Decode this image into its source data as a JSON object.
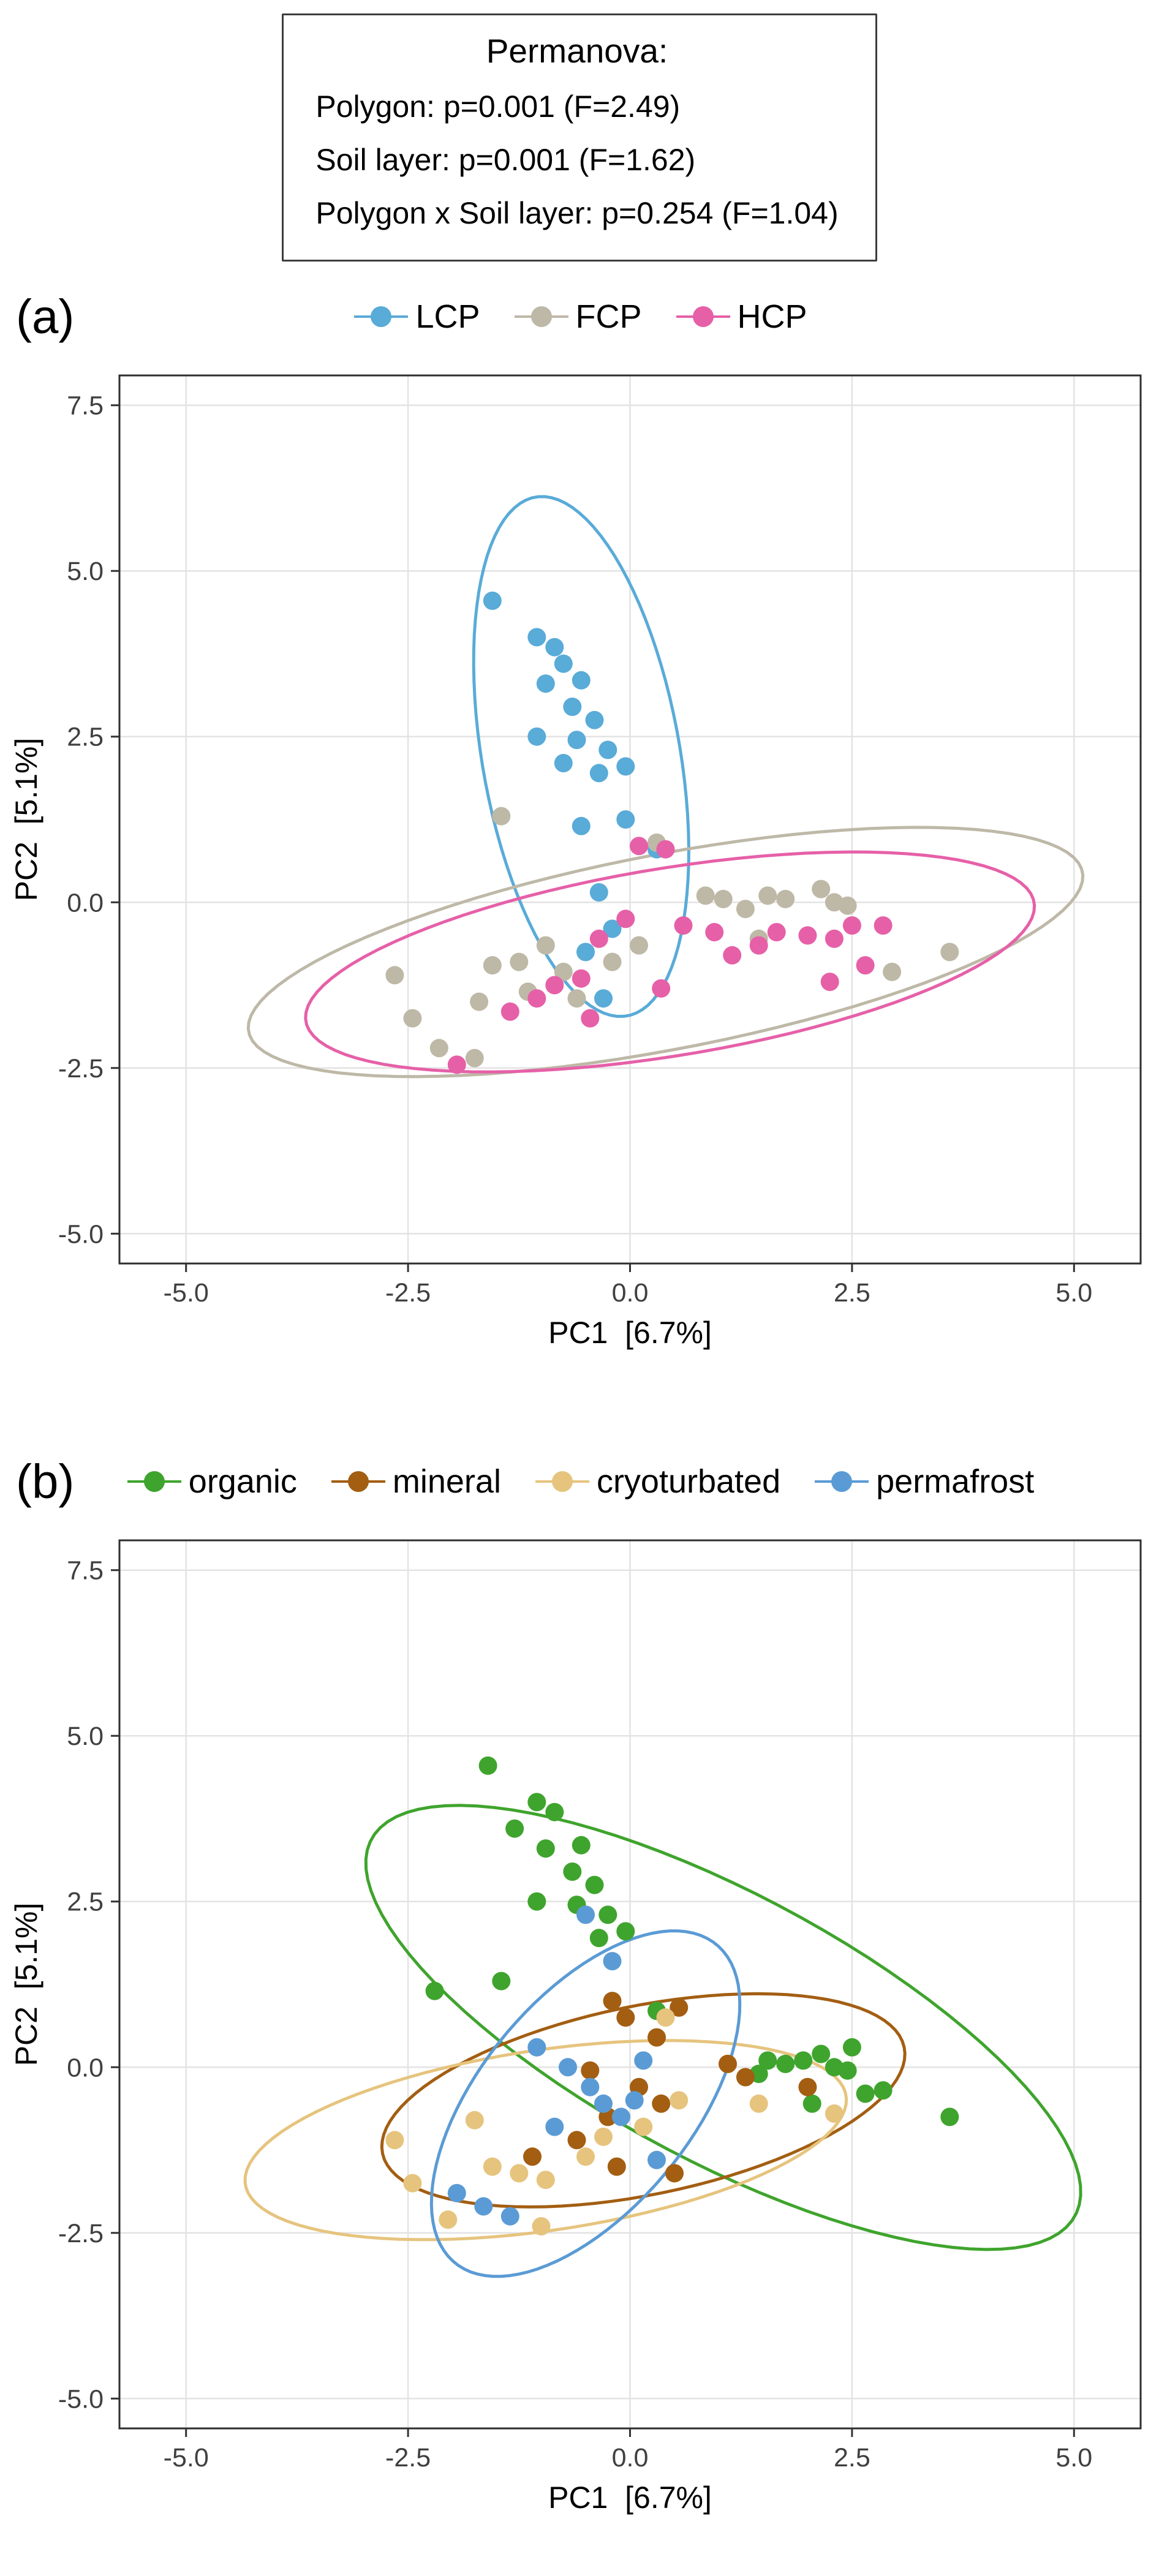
{
  "permanova_box": {
    "title": "Permanova:",
    "lines": [
      "Polygon: p=0.001 (F=2.49)",
      "Soil layer: p=0.001 (F=1.62)",
      "Polygon x Soil layer: p=0.254 (F=1.04)"
    ]
  },
  "style": {
    "grid_color": "#e3e3e3",
    "border_color": "#2e2e2e",
    "tick_color": "#333333",
    "tick_label_color": "#404040",
    "axis_title_color": "#000000",
    "point_radius": 15,
    "ellipse_stroke_width": 5
  },
  "chart_data": [
    {
      "type": "scatter",
      "panel_label": "(a)",
      "xlabel": "PC1  [6.7%]",
      "ylabel": "PC2  [5.1%]",
      "xlim": [
        -5.75,
        5.75
      ],
      "ylim": [
        -5.45,
        7.95
      ],
      "xticks": [
        -5.0,
        -2.5,
        0.0,
        2.5,
        5.0
      ],
      "xtick_labels": [
        "-5.0",
        "-2.5",
        "0.0",
        "2.5",
        "5.0"
      ],
      "yticks": [
        -5.0,
        -2.5,
        0.0,
        2.5,
        5.0,
        7.5
      ],
      "ytick_labels": [
        "-5.0",
        "-2.5",
        "0.0",
        "2.5",
        "5.0",
        "7.5"
      ],
      "grid": true,
      "legend_position": "top",
      "series": [
        {
          "name": "lcp",
          "label": "LCP",
          "color": "#59abd8",
          "ellipse": {
            "cx": -0.55,
            "cy": 2.2,
            "rx": 3.95,
            "ry": 1.12,
            "angle": 97
          },
          "points": [
            [
              -1.55,
              4.55
            ],
            [
              -1.05,
              4.0
            ],
            [
              -0.85,
              3.85
            ],
            [
              -0.75,
              3.6
            ],
            [
              -0.95,
              3.3
            ],
            [
              -0.55,
              3.35
            ],
            [
              -0.65,
              2.95
            ],
            [
              -0.4,
              2.75
            ],
            [
              -1.05,
              2.5
            ],
            [
              -0.6,
              2.45
            ],
            [
              -0.25,
              2.3
            ],
            [
              -0.75,
              2.1
            ],
            [
              -0.35,
              1.95
            ],
            [
              -0.05,
              2.05
            ],
            [
              -0.55,
              1.15
            ],
            [
              -0.05,
              1.25
            ],
            [
              0.3,
              0.8
            ],
            [
              -0.35,
              0.15
            ],
            [
              -0.2,
              -0.4
            ],
            [
              -0.5,
              -0.75
            ],
            [
              -0.3,
              -1.45
            ]
          ]
        },
        {
          "name": "fcp",
          "label": "FCP",
          "color": "#beb8a7",
          "ellipse": {
            "cx": 0.4,
            "cy": -0.75,
            "rx": 4.85,
            "ry": 1.45,
            "angle": 15
          },
          "points": [
            [
              -1.45,
              1.3
            ],
            [
              0.3,
              0.9
            ],
            [
              -2.65,
              -1.1
            ],
            [
              -2.45,
              -1.75
            ],
            [
              -2.15,
              -2.2
            ],
            [
              -1.75,
              -2.35
            ],
            [
              -1.7,
              -1.5
            ],
            [
              -1.55,
              -0.95
            ],
            [
              -1.25,
              -0.9
            ],
            [
              -1.15,
              -1.35
            ],
            [
              -0.95,
              -0.65
            ],
            [
              -0.75,
              -1.05
            ],
            [
              -0.6,
              -1.45
            ],
            [
              -0.2,
              -0.9
            ],
            [
              0.1,
              -0.65
            ],
            [
              0.85,
              0.1
            ],
            [
              1.05,
              0.05
            ],
            [
              1.3,
              -0.1
            ],
            [
              1.55,
              0.1
            ],
            [
              1.75,
              0.05
            ],
            [
              2.15,
              0.2
            ],
            [
              2.3,
              0.0
            ],
            [
              2.45,
              -0.05
            ],
            [
              3.6,
              -0.75
            ],
            [
              2.95,
              -1.05
            ],
            [
              1.45,
              -0.55
            ]
          ]
        },
        {
          "name": "hcp",
          "label": "HCP",
          "color": "#e660a8",
          "ellipse": {
            "cx": 0.45,
            "cy": -0.9,
            "rx": 4.2,
            "ry": 1.4,
            "angle": 13
          },
          "points": [
            [
              0.1,
              0.85
            ],
            [
              0.4,
              0.8
            ],
            [
              -0.05,
              -0.25
            ],
            [
              -0.35,
              -0.55
            ],
            [
              -0.55,
              -1.15
            ],
            [
              -0.85,
              -1.25
            ],
            [
              -1.05,
              -1.45
            ],
            [
              -1.35,
              -1.65
            ],
            [
              -1.95,
              -2.45
            ],
            [
              -0.45,
              -1.75
            ],
            [
              0.6,
              -0.35
            ],
            [
              0.95,
              -0.45
            ],
            [
              1.45,
              -0.65
            ],
            [
              1.65,
              -0.45
            ],
            [
              2.0,
              -0.5
            ],
            [
              2.3,
              -0.55
            ],
            [
              2.5,
              -0.35
            ],
            [
              2.65,
              -0.95
            ],
            [
              2.85,
              -0.35
            ],
            [
              2.25,
              -1.2
            ],
            [
              1.15,
              -0.8
            ],
            [
              0.35,
              -1.3
            ]
          ]
        }
      ]
    },
    {
      "type": "scatter",
      "panel_label": "(b)",
      "xlabel": "PC1  [6.7%]",
      "ylabel": "PC2  [5.1%]",
      "xlim": [
        -5.75,
        5.75
      ],
      "ylim": [
        -5.45,
        7.95
      ],
      "xticks": [
        -5.0,
        -2.5,
        0.0,
        2.5,
        5.0
      ],
      "xtick_labels": [
        "-5.0",
        "-2.5",
        "0.0",
        "2.5",
        "5.0"
      ],
      "yticks": [
        -5.0,
        -2.5,
        0.0,
        2.5,
        5.0,
        7.5
      ],
      "ytick_labels": [
        "-5.0",
        "-2.5",
        "0.0",
        "2.5",
        "5.0",
        "7.5"
      ],
      "grid": true,
      "legend_position": "top",
      "series": [
        {
          "name": "organic",
          "label": "organic",
          "color": "#3fa42d",
          "ellipse": {
            "cx": 1.05,
            "cy": 0.6,
            "rx": 4.9,
            "ry": 1.85,
            "angle": -38
          },
          "points": [
            [
              -1.6,
              4.55
            ],
            [
              -1.05,
              4.0
            ],
            [
              -0.85,
              3.85
            ],
            [
              -1.3,
              3.6
            ],
            [
              -0.55,
              3.35
            ],
            [
              -0.95,
              3.3
            ],
            [
              -0.65,
              2.95
            ],
            [
              -0.4,
              2.75
            ],
            [
              -1.05,
              2.5
            ],
            [
              -0.6,
              2.45
            ],
            [
              -0.25,
              2.3
            ],
            [
              -0.35,
              1.95
            ],
            [
              -0.05,
              2.05
            ],
            [
              -1.45,
              1.3
            ],
            [
              -2.2,
              1.15
            ],
            [
              0.3,
              0.85
            ],
            [
              1.55,
              0.1
            ],
            [
              1.75,
              0.05
            ],
            [
              1.95,
              0.1
            ],
            [
              2.15,
              0.2
            ],
            [
              2.3,
              0.0
            ],
            [
              2.45,
              -0.05
            ],
            [
              2.65,
              -0.4
            ],
            [
              2.85,
              -0.35
            ],
            [
              3.6,
              -0.75
            ],
            [
              1.45,
              -0.1
            ],
            [
              2.05,
              -0.55
            ],
            [
              2.5,
              0.3
            ]
          ]
        },
        {
          "name": "mineral",
          "label": "mineral",
          "color": "#a35e12",
          "ellipse": {
            "cx": 0.15,
            "cy": -0.5,
            "rx": 3.05,
            "ry": 1.4,
            "angle": 17
          },
          "points": [
            [
              -0.2,
              1.0
            ],
            [
              0.55,
              0.9
            ],
            [
              -0.05,
              0.75
            ],
            [
              0.3,
              0.45
            ],
            [
              -0.45,
              -0.05
            ],
            [
              0.1,
              -0.3
            ],
            [
              0.35,
              -0.55
            ],
            [
              -0.25,
              -0.75
            ],
            [
              -0.6,
              -1.1
            ],
            [
              -0.15,
              -1.5
            ],
            [
              0.5,
              -1.6
            ],
            [
              1.1,
              0.05
            ],
            [
              1.3,
              -0.15
            ],
            [
              2.0,
              -0.3
            ],
            [
              -1.1,
              -1.35
            ]
          ]
        },
        {
          "name": "cryoturbated",
          "label": "cryoturbated",
          "color": "#e6c47e",
          "ellipse": {
            "cx": -0.95,
            "cy": -1.1,
            "rx": 3.45,
            "ry": 1.35,
            "angle": 12
          },
          "points": [
            [
              -2.65,
              -1.1
            ],
            [
              -2.45,
              -1.75
            ],
            [
              -1.75,
              -0.8
            ],
            [
              -1.55,
              -1.5
            ],
            [
              -1.25,
              -1.6
            ],
            [
              -0.95,
              -1.7
            ],
            [
              -0.5,
              -1.35
            ],
            [
              -0.3,
              -1.05
            ],
            [
              0.4,
              0.75
            ],
            [
              0.55,
              -0.5
            ],
            [
              1.45,
              -0.55
            ],
            [
              2.3,
              -0.7
            ],
            [
              -1.0,
              -2.4
            ],
            [
              0.15,
              -0.9
            ],
            [
              -2.05,
              -2.3
            ]
          ]
        },
        {
          "name": "permafrost",
          "label": "permafrost",
          "color": "#5b9bd5",
          "ellipse": {
            "cx": -0.5,
            "cy": -0.55,
            "rx": 2.85,
            "ry": 1.3,
            "angle": 63
          },
          "points": [
            [
              -0.5,
              2.3
            ],
            [
              -0.2,
              1.6
            ],
            [
              -1.05,
              0.3
            ],
            [
              -0.7,
              0.0
            ],
            [
              -0.45,
              -0.3
            ],
            [
              -0.3,
              -0.55
            ],
            [
              -0.1,
              -0.75
            ],
            [
              0.05,
              -0.5
            ],
            [
              -1.95,
              -1.9
            ],
            [
              -1.65,
              -2.1
            ],
            [
              -1.35,
              -2.25
            ],
            [
              0.3,
              -1.4
            ],
            [
              -0.85,
              -0.9
            ],
            [
              0.15,
              0.1
            ]
          ]
        }
      ]
    }
  ]
}
